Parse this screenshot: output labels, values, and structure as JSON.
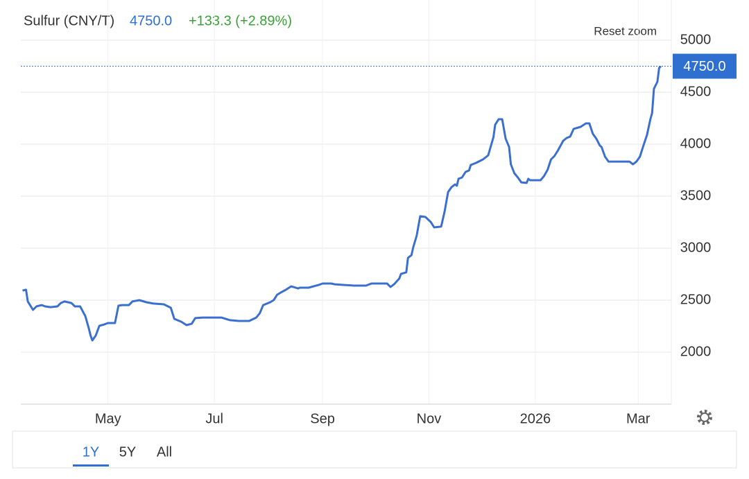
{
  "header": {
    "title": "Sulfur (CNY/T)",
    "price": "4750.0",
    "change": "+133.3 (+2.89%)"
  },
  "reset_zoom": "Reset zoom",
  "chart_data": {
    "type": "line",
    "x": [
      1,
      3,
      4,
      7,
      9,
      12,
      14,
      17,
      21,
      23,
      25,
      29,
      31,
      34,
      37,
      39,
      40,
      41,
      43,
      45,
      48,
      50,
      54,
      56,
      58,
      62,
      64,
      68,
      72,
      76,
      82,
      86,
      88,
      92,
      95,
      98,
      100,
      104,
      115,
      120,
      125,
      131,
      135,
      137,
      139,
      143,
      145,
      147,
      149,
      152,
      155,
      159,
      160,
      165,
      171,
      173,
      178,
      180,
      184,
      191,
      198,
      201,
      210,
      212,
      214,
      217,
      218,
      221,
      222,
      224,
      225,
      227,
      229,
      232,
      235,
      237,
      241,
      243,
      245,
      247,
      249,
      250,
      251,
      253,
      255,
      257,
      258,
      261,
      265,
      268,
      269,
      271,
      272,
      274,
      276,
      278,
      280,
      281,
      283,
      285,
      287,
      290,
      291,
      292,
      298,
      300,
      302,
      304,
      306,
      308,
      311,
      313,
      315,
      317,
      321,
      324,
      326,
      328,
      330,
      332,
      333,
      335,
      337,
      345,
      349,
      351,
      353,
      355,
      357,
      359,
      361,
      362,
      363,
      365,
      366,
      367
    ],
    "series": [
      {
        "name": "Sulfur",
        "color": "#3a6fd0",
        "values": [
          2593,
          2600,
          2487,
          2407,
          2440,
          2453,
          2440,
          2433,
          2440,
          2473,
          2487,
          2473,
          2440,
          2440,
          2347,
          2227,
          2160,
          2113,
          2160,
          2253,
          2267,
          2280,
          2280,
          2447,
          2453,
          2453,
          2487,
          2500,
          2480,
          2467,
          2460,
          2427,
          2320,
          2293,
          2260,
          2273,
          2327,
          2333,
          2333,
          2307,
          2300,
          2300,
          2333,
          2373,
          2453,
          2480,
          2500,
          2553,
          2573,
          2600,
          2633,
          2613,
          2620,
          2620,
          2647,
          2660,
          2660,
          2653,
          2647,
          2640,
          2640,
          2660,
          2660,
          2627,
          2653,
          2707,
          2753,
          2767,
          2907,
          2933,
          3007,
          3120,
          3307,
          3300,
          3253,
          3200,
          3207,
          3353,
          3540,
          3587,
          3613,
          3600,
          3667,
          3680,
          3733,
          3747,
          3800,
          3820,
          3853,
          3893,
          3953,
          4067,
          4187,
          4240,
          4240,
          4053,
          3973,
          3807,
          3720,
          3680,
          3633,
          3627,
          3667,
          3653,
          3653,
          3693,
          3753,
          3853,
          3887,
          3940,
          4033,
          4060,
          4073,
          4147,
          4167,
          4200,
          4200,
          4100,
          4053,
          3987,
          3973,
          3880,
          3833,
          3833,
          3833,
          3807,
          3833,
          3880,
          3987,
          4087,
          4240,
          4300,
          4533,
          4600,
          4733,
          4750
        ]
      }
    ],
    "xlim": [
      0,
      373
    ],
    "xticks": [
      {
        "value": 50,
        "label": "May"
      },
      {
        "value": 111,
        "label": "Jul"
      },
      {
        "value": 173,
        "label": "Sep"
      },
      {
        "value": 234,
        "label": "Nov"
      },
      {
        "value": 295,
        "label": "2026"
      },
      {
        "value": 354,
        "label": "Mar"
      }
    ],
    "ylim": [
      1500,
      5200
    ],
    "yticks": [
      2000,
      2500,
      3000,
      3500,
      4000,
      4500,
      5000
    ],
    "grid": true
  },
  "ranges": [
    "1Y",
    "5Y",
    "All"
  ]
}
